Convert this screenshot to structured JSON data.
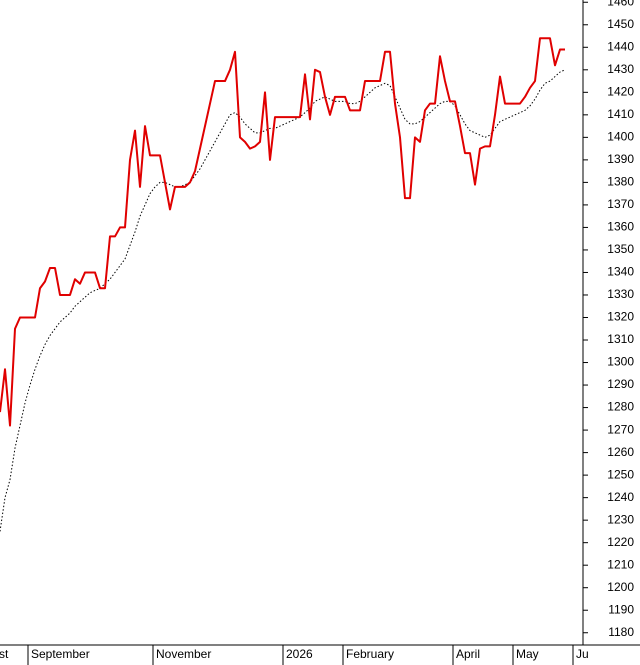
{
  "chart_data": {
    "type": "line",
    "categories": [
      "st",
      null,
      null,
      null,
      null,
      null,
      "September",
      null,
      null,
      null,
      null,
      null,
      null,
      null,
      null,
      null,
      null,
      null,
      null,
      null,
      null,
      null,
      null,
      null,
      null,
      null,
      null,
      null,
      null,
      null,
      null,
      "November",
      null,
      null,
      null,
      null,
      null,
      null,
      null,
      null,
      null,
      null,
      null,
      null,
      null,
      null,
      null,
      null,
      null,
      null,
      null,
      null,
      null,
      null,
      null,
      null,
      null,
      "2026",
      null,
      null,
      null,
      null,
      null,
      null,
      null,
      null,
      null,
      null,
      null,
      "February",
      null,
      null,
      null,
      null,
      null,
      null,
      null,
      null,
      null,
      null,
      null,
      null,
      null,
      null,
      null,
      null,
      null,
      null,
      null,
      null,
      null,
      "April",
      null,
      null,
      null,
      null,
      null,
      null,
      null,
      null,
      null,
      null,
      null,
      "May",
      null,
      null,
      null,
      null,
      null,
      null,
      null,
      null,
      null,
      null,
      null,
      "Ju"
    ],
    "series": [
      {
        "color": "#e00000",
        "style": "solid",
        "values": [
          1278,
          1297,
          1272,
          1315,
          1320,
          1320,
          1320,
          1320,
          1333,
          1336,
          1342,
          1342,
          1330,
          1330,
          1330,
          1337,
          1335,
          1340,
          1340,
          1340,
          1333,
          1333,
          1356,
          1356,
          1360,
          1360,
          1390,
          1403,
          1378,
          1405,
          1392,
          1392,
          1392,
          1380,
          1368,
          1378,
          1378,
          1378,
          1380,
          1385,
          1395,
          1405,
          1415,
          1425,
          1425,
          1425,
          1430,
          1438,
          1400,
          1398,
          1395,
          1396,
          1398,
          1420,
          1390,
          1409,
          1409,
          1409,
          1409,
          1409,
          1409,
          1428,
          1408,
          1430,
          1429,
          1418,
          1410,
          1418,
          1418,
          1418,
          1412,
          1412,
          1412,
          1425,
          1425,
          1425,
          1425,
          1438,
          1438,
          1415,
          1400,
          1373,
          1373,
          1400,
          1398,
          1412,
          1415,
          1415,
          1436,
          1425,
          1416,
          1416,
          1405,
          1393,
          1393,
          1379,
          1395,
          1396,
          1396,
          1410,
          1427,
          1415,
          1415,
          1415,
          1415,
          1418,
          1422,
          1425,
          1444,
          1444,
          1444,
          1432,
          1439,
          1439,
          null,
          null
        ]
      },
      {
        "color": "#000000",
        "style": "dotted",
        "values": [
          1225,
          1240,
          1248,
          1262,
          1272,
          1282,
          1290,
          1297,
          1303,
          1308,
          1312,
          1315,
          1318,
          1320,
          1322,
          1325,
          1327,
          1329,
          1331,
          1332,
          1333,
          1335,
          1337,
          1340,
          1343,
          1346,
          1352,
          1358,
          1365,
          1370,
          1375,
          1378,
          1380,
          1380,
          1379,
          1378,
          1378,
          1379,
          1380,
          1383,
          1386,
          1390,
          1394,
          1398,
          1402,
          1406,
          1410,
          1411,
          1409,
          1406,
          1404,
          1402,
          1402,
          1403,
          1404,
          1404,
          1405,
          1406,
          1407,
          1408,
          1409,
          1411,
          1413,
          1416,
          1417,
          1418,
          1417,
          1416,
          1416,
          1416,
          1415,
          1415,
          1416,
          1418,
          1420,
          1422,
          1423,
          1424,
          1423,
          1418,
          1413,
          1408,
          1406,
          1406,
          1407,
          1409,
          1411,
          1413,
          1415,
          1416,
          1416,
          1414,
          1410,
          1406,
          1403,
          1402,
          1401,
          1400,
          1401,
          1404,
          1407,
          1408,
          1409,
          1410,
          1411,
          1412,
          1414,
          1417,
          1421,
          1424,
          1425,
          1427,
          1429,
          1430,
          null,
          null
        ]
      }
    ],
    "ylim": [
      1175,
      1461
    ],
    "yticks": [
      1180,
      1190,
      1200,
      1210,
      1220,
      1230,
      1240,
      1250,
      1260,
      1270,
      1280,
      1290,
      1300,
      1310,
      1320,
      1330,
      1340,
      1350,
      1360,
      1370,
      1380,
      1390,
      1400,
      1410,
      1420,
      1430,
      1440,
      1450,
      1460
    ],
    "y_axis_side": "right"
  }
}
